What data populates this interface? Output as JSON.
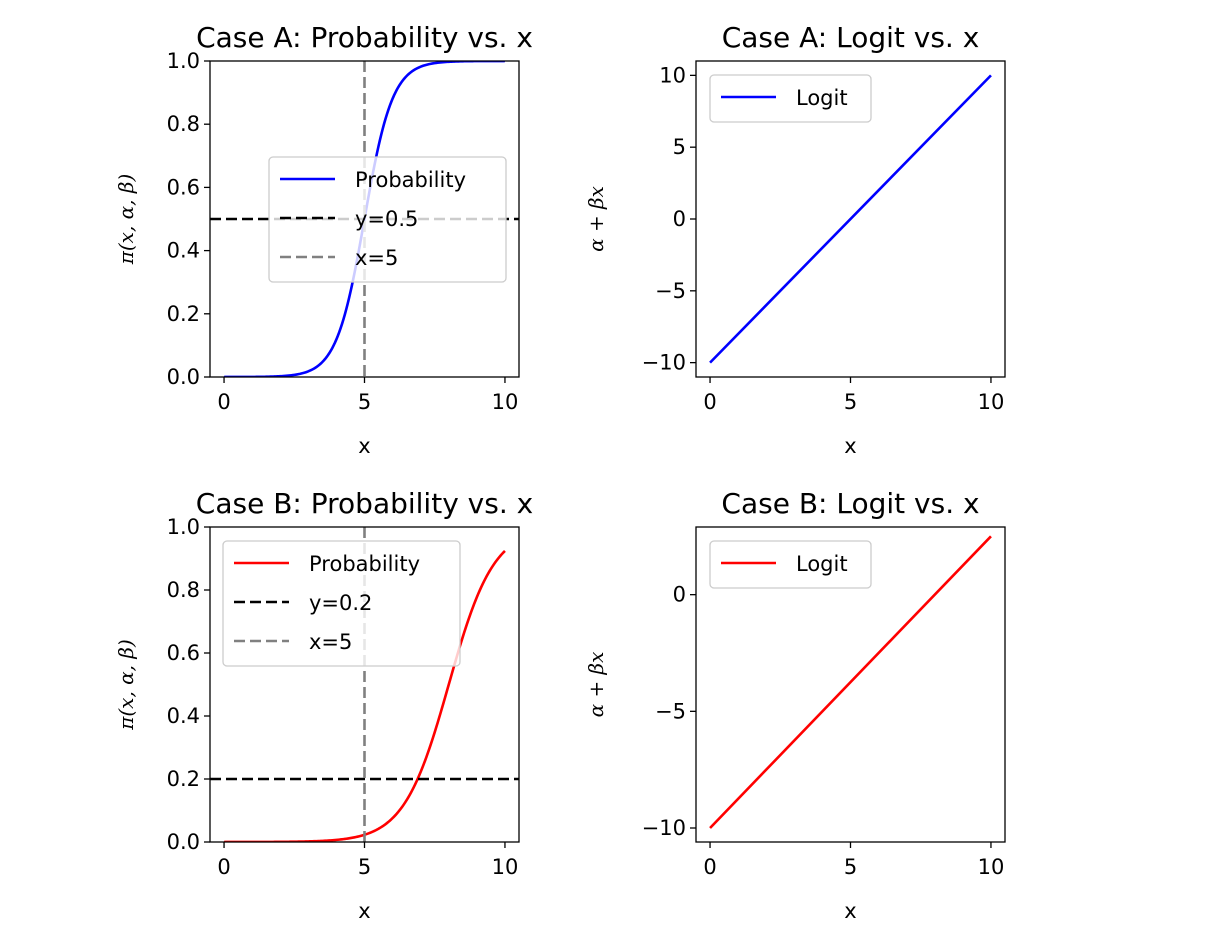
{
  "chart_data": [
    {
      "type": "line",
      "title": "Case A: Probability vs. x",
      "xlabel": "x",
      "ylabel": "π(x, α, β)",
      "xlim": [
        -0.5,
        10.5
      ],
      "ylim": [
        0,
        1
      ],
      "xticks": [
        0,
        5,
        10
      ],
      "yticks": [
        0.0,
        0.2,
        0.4,
        0.6,
        0.8,
        1.0
      ],
      "ytick_labels": [
        "0.0",
        "0.2",
        "0.4",
        "0.6",
        "0.8",
        "1.0"
      ],
      "series": [
        {
          "name": "Probability",
          "kind": "curve",
          "color": "#0000ff",
          "dash": "solid",
          "curve": {
            "form": "logistic",
            "alpha": -10,
            "beta": 2,
            "x_range": [
              0,
              10
            ]
          }
        },
        {
          "name": "y=0.5",
          "kind": "hline",
          "value": 0.5,
          "color": "#000000",
          "dash": "dashed"
        },
        {
          "name": "x=5",
          "kind": "vline",
          "value": 5,
          "color": "#808080",
          "dash": "dashed"
        }
      ],
      "legend": {
        "placement": "center-right",
        "entries": [
          "Probability",
          "y=0.5",
          "x=5"
        ]
      }
    },
    {
      "type": "line",
      "title": "Case A: Logit vs. x",
      "xlabel": "x",
      "ylabel": "α + βx",
      "xlim": [
        -0.5,
        10.5
      ],
      "ylim": [
        -11,
        11
      ],
      "xticks": [
        0,
        5,
        10
      ],
      "yticks": [
        -10,
        -5,
        0,
        5,
        10
      ],
      "ytick_labels": [
        "−10",
        "−5",
        "0",
        "5",
        "10"
      ],
      "series": [
        {
          "name": "Logit",
          "kind": "line",
          "color": "#0000ff",
          "dash": "solid",
          "x": [
            0,
            10
          ],
          "y": [
            -10,
            10
          ]
        }
      ],
      "legend": {
        "placement": "upper-left",
        "entries": [
          "Logit"
        ]
      }
    },
    {
      "type": "line",
      "title": "Case B: Probability vs. x",
      "xlabel": "x",
      "ylabel": "π(x, α, β)",
      "xlim": [
        -0.5,
        10.5
      ],
      "ylim": [
        0,
        1
      ],
      "xticks": [
        0,
        5,
        10
      ],
      "yticks": [
        0.0,
        0.2,
        0.4,
        0.6,
        0.8,
        1.0
      ],
      "ytick_labels": [
        "0.0",
        "0.2",
        "0.4",
        "0.6",
        "0.8",
        "1.0"
      ],
      "series": [
        {
          "name": "Probability",
          "kind": "curve",
          "color": "#ff0000",
          "dash": "solid",
          "curve": {
            "form": "logistic",
            "alpha": -10,
            "beta": 1.25,
            "x_range": [
              0,
              10
            ]
          }
        },
        {
          "name": "y=0.2",
          "kind": "hline",
          "value": 0.2,
          "color": "#000000",
          "dash": "dashed"
        },
        {
          "name": "x=5",
          "kind": "vline",
          "value": 5,
          "color": "#808080",
          "dash": "dashed"
        }
      ],
      "legend": {
        "placement": "upper-left",
        "entries": [
          "Probability",
          "y=0.2",
          "x=5"
        ]
      }
    },
    {
      "type": "line",
      "title": "Case B: Logit vs. x",
      "xlabel": "x",
      "ylabel": "α + βx",
      "xlim": [
        -0.5,
        10.5
      ],
      "ylim": [
        -10.6,
        2.9
      ],
      "xticks": [
        0,
        5,
        10
      ],
      "yticks": [
        -10,
        -5,
        0
      ],
      "ytick_labels": [
        "−10",
        "−5",
        "0"
      ],
      "series": [
        {
          "name": "Logit",
          "kind": "line",
          "color": "#ff0000",
          "dash": "solid",
          "x": [
            0,
            10
          ],
          "y": [
            -10,
            2.5
          ]
        }
      ],
      "legend": {
        "placement": "upper-left",
        "entries": [
          "Logit"
        ]
      }
    }
  ]
}
